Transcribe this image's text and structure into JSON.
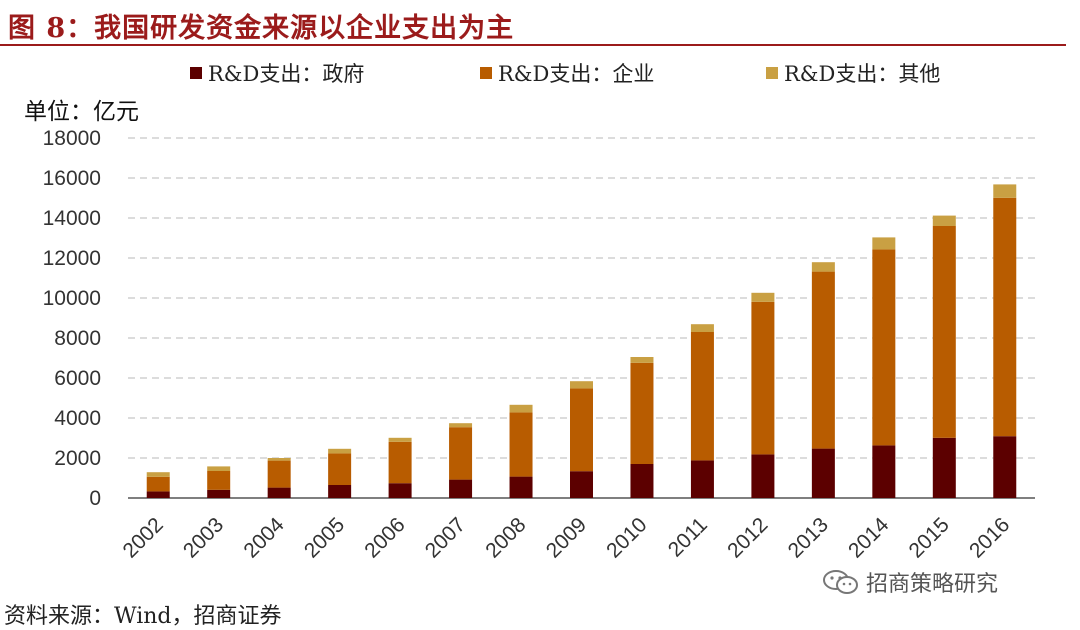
{
  "header": {
    "title": "图 8：我国研发资金来源以企业支出为主"
  },
  "unit_label": "单位：亿元",
  "source": "资料来源：Wind，招商证券",
  "watermark": {
    "text": "招商策略研究",
    "icon": "wechat-icon"
  },
  "colors": {
    "government": "#5c0000",
    "enterprise": "#b85c00",
    "other": "#c9a043",
    "title": "#9b1b1b"
  },
  "chart_data": {
    "type": "bar",
    "stacked": true,
    "categories": [
      "2002",
      "2003",
      "2004",
      "2005",
      "2006",
      "2007",
      "2008",
      "2009",
      "2010",
      "2011",
      "2012",
      "2013",
      "2014",
      "2015",
      "2016"
    ],
    "series": [
      {
        "name": "R&D支出：政府",
        "values": [
          330,
          410,
          520,
          650,
          740,
          920,
          1070,
          1340,
          1700,
          1880,
          2180,
          2470,
          2630,
          3010,
          3090
        ]
      },
      {
        "name": "R&D支出：企业",
        "values": [
          730,
          940,
          1350,
          1580,
          2070,
          2620,
          3210,
          4140,
          5060,
          6420,
          7630,
          8850,
          9800,
          10590,
          11920
        ]
      },
      {
        "name": "R&D支出：其他",
        "values": [
          230,
          230,
          130,
          230,
          200,
          200,
          380,
          360,
          290,
          390,
          450,
          470,
          600,
          520,
          670
        ]
      }
    ],
    "ylim": [
      0,
      18000
    ],
    "yticks": [
      0,
      2000,
      4000,
      6000,
      8000,
      10000,
      12000,
      14000,
      16000,
      18000
    ],
    "ylabel": "单位：亿元",
    "grid": true,
    "legend_position": "top"
  }
}
